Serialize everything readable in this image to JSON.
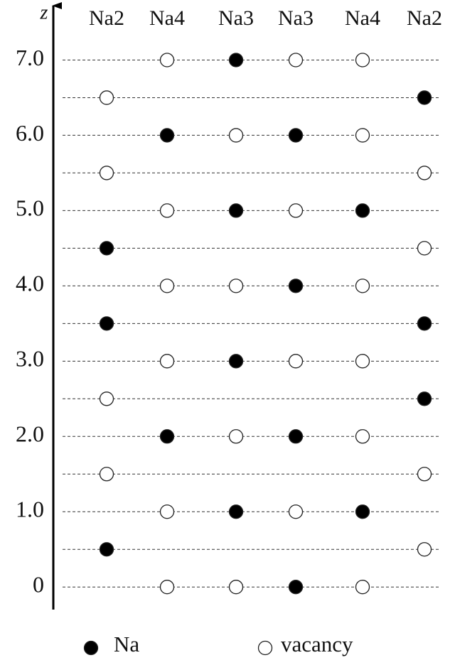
{
  "chart_data": {
    "type": "site-occupancy",
    "y_label": "z",
    "ylim": [
      -0.3,
      7.75
    ],
    "yticks": [
      {
        "value": 7,
        "label": "7.0"
      },
      {
        "value": 6,
        "label": "6.0"
      },
      {
        "value": 5,
        "label": "5.0"
      },
      {
        "value": 4,
        "label": "4.0"
      },
      {
        "value": 3,
        "label": "3.0"
      },
      {
        "value": 2,
        "label": "2.0"
      },
      {
        "value": 1,
        "label": "1.0"
      },
      0
    ],
    "series": [
      {
        "name": "Na",
        "fill": "#000000"
      },
      {
        "name": "vacancy",
        "fill": "#ffffff"
      }
    ],
    "columns": [
      {
        "label": "Na2",
        "sites": [
          [
            4.5,
            3.5,
            0.5
          ],
          [
            6.5,
            5.5,
            2.5,
            1.5
          ]
        ]
      },
      {
        "label": "Na4",
        "sites": [
          [
            6,
            2
          ],
          [
            7,
            5,
            4,
            3,
            1,
            0
          ]
        ]
      },
      {
        "label": "Na3",
        "sites": [
          [
            7,
            5,
            3,
            1
          ],
          [
            6,
            4,
            2,
            0
          ]
        ]
      },
      {
        "label": "Na3",
        "sites": [
          [
            6,
            4,
            2,
            0
          ],
          [
            7,
            5,
            3,
            1
          ]
        ]
      },
      {
        "label": "Na4",
        "sites": [
          [
            5,
            1
          ],
          [
            7,
            6,
            4,
            3,
            2,
            0
          ]
        ]
      },
      {
        "label": "Na2",
        "sites": [
          [
            6.5,
            3.5,
            2.5
          ],
          [
            5.5,
            4.5,
            1.5,
            0.5
          ]
        ]
      }
    ]
  }
}
